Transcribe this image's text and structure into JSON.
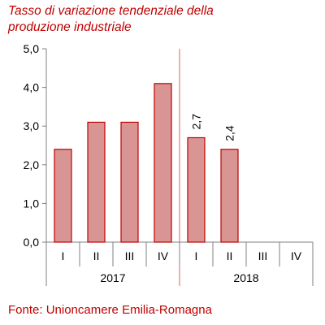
{
  "chart_data": {
    "type": "bar",
    "title": "Tasso di variazione tendenziale della produzione industriale",
    "title_lines": [
      "Tasso di variazione tendenziale della",
      "produzione industriale"
    ],
    "source": "Fonte: Unioncamere Emilia-Romagna",
    "categories": [
      "I",
      "II",
      "III",
      "IV",
      "I",
      "II",
      "III",
      "IV"
    ],
    "groups": [
      {
        "label": "2017",
        "count": 4
      },
      {
        "label": "2018",
        "count": 4
      }
    ],
    "values": [
      2.4,
      3.1,
      3.1,
      4.1,
      2.7,
      2.4,
      null,
      null
    ],
    "data_labels": [
      null,
      null,
      null,
      null,
      "2,7",
      "2,4",
      null,
      null
    ],
    "ylim": [
      0,
      5
    ],
    "yticks": [
      0,
      1,
      2,
      3,
      4,
      5
    ],
    "ytick_labels": [
      "0,0",
      "1,0",
      "2,0",
      "3,0",
      "4,0",
      "5,0"
    ],
    "xlabel": "",
    "ylabel": "",
    "grid": false,
    "legend": "none",
    "bar_color": "#d99594",
    "bar_edge_color": "#c00000",
    "text_color": "#c00000",
    "divider_color": "#e06060"
  }
}
